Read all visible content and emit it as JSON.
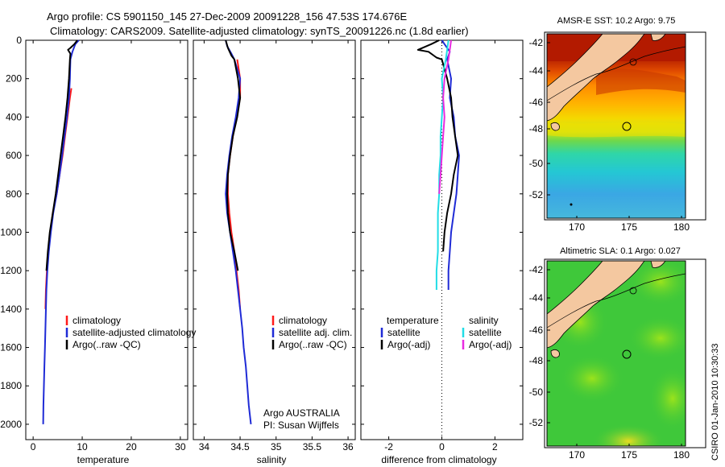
{
  "header": {
    "line1": "Argo profile: CS 5901150_145 27-Dec-2009 20091228_156 47.53S 174.676E",
    "line2": "Climatology: CARS2009. Satellite-adjusted climatology: synTS_20091226.nc (1.8d earlier)"
  },
  "footer": {
    "agency_line1": "Argo AUSTRALIA",
    "agency_line2": "PI: Susan Wijffels",
    "csiro_stamp": "CSIRO 01-Jan-2010 10:30:33"
  },
  "colors": {
    "climatology": "#ff1a1a",
    "satellite": "#1f2bd6",
    "argo": "#000000",
    "satellite_salinity": "#22dde6",
    "argo_adj_salinity": "#e82be0"
  },
  "chart_data": [
    {
      "type": "line",
      "id": "temperature",
      "xlabel": "temperature",
      "xlim": [
        -1.5,
        31.5
      ],
      "ylim": [
        0,
        2080
      ],
      "y_inverted": true,
      "xticks": [
        0,
        10,
        20,
        30
      ],
      "yticks": [
        0,
        200,
        400,
        600,
        800,
        1000,
        1200,
        1400,
        1600,
        1800,
        2000
      ],
      "legend": [
        "climatology",
        "satellite-adjusted climatology",
        "Argo(..raw -QC)"
      ],
      "series": [
        {
          "name": "climatology",
          "color": "#ff1a1a",
          "points": [
            [
              7.8,
              250
            ],
            [
              7.5,
              300
            ],
            [
              7.0,
              400
            ],
            [
              6.5,
              500
            ],
            [
              6.0,
              600
            ],
            [
              5.4,
              700
            ],
            [
              4.8,
              800
            ],
            [
              4.0,
              900
            ],
            [
              3.5,
              1000
            ],
            [
              3.1,
              1100
            ],
            [
              2.8,
              1200
            ],
            [
              2.6,
              1300
            ],
            [
              2.5,
              1400
            ]
          ]
        },
        {
          "name": "satellite-adjusted climatology",
          "color": "#1f2bd6",
          "points": [
            [
              9.3,
              0
            ],
            [
              8.6,
              20
            ],
            [
              8.0,
              60
            ],
            [
              7.6,
              100
            ],
            [
              7.5,
              200
            ],
            [
              7.3,
              300
            ],
            [
              6.9,
              400
            ],
            [
              6.4,
              500
            ],
            [
              5.9,
              600
            ],
            [
              5.4,
              700
            ],
            [
              4.8,
              800
            ],
            [
              4.1,
              900
            ],
            [
              3.6,
              1000
            ],
            [
              3.2,
              1100
            ],
            [
              2.9,
              1200
            ],
            [
              2.7,
              1300
            ],
            [
              2.6,
              1400
            ],
            [
              2.5,
              1500
            ],
            [
              2.4,
              1600
            ],
            [
              2.3,
              1700
            ],
            [
              2.2,
              1800
            ],
            [
              2.1,
              1900
            ],
            [
              2.05,
              2000
            ]
          ]
        },
        {
          "name": "Argo(..raw -QC)",
          "color": "#000000",
          "points": [
            [
              9.0,
              0
            ],
            [
              8.4,
              20
            ],
            [
              7.6,
              40
            ],
            [
              7.1,
              50
            ],
            [
              7.6,
              70
            ],
            [
              7.5,
              100
            ],
            [
              7.3,
              200
            ],
            [
              7.0,
              300
            ],
            [
              6.6,
              400
            ],
            [
              6.1,
              500
            ],
            [
              5.6,
              600
            ],
            [
              5.1,
              700
            ],
            [
              4.6,
              800
            ],
            [
              4.0,
              900
            ],
            [
              3.4,
              1000
            ],
            [
              3.0,
              1100
            ],
            [
              2.7,
              1200
            ]
          ]
        }
      ]
    },
    {
      "type": "line",
      "id": "salinity",
      "xlabel": "salinity",
      "xlim": [
        33.85,
        36.1
      ],
      "ylim": [
        0,
        2080
      ],
      "y_inverted": true,
      "xticks": [
        34,
        34.5,
        35,
        35.5,
        36
      ],
      "legend": [
        "climatology",
        "satellite adj. clim.",
        "Argo(..raw -QC)"
      ],
      "series": [
        {
          "name": "climatology",
          "color": "#ff1a1a",
          "points": [
            [
              34.46,
              100
            ],
            [
              34.5,
              200
            ],
            [
              34.5,
              300
            ],
            [
              34.45,
              400
            ],
            [
              34.4,
              500
            ],
            [
              34.36,
              600
            ],
            [
              34.33,
              700
            ],
            [
              34.33,
              800
            ],
            [
              34.35,
              900
            ],
            [
              34.38,
              1000
            ],
            [
              34.42,
              1100
            ],
            [
              34.45,
              1200
            ],
            [
              34.48,
              1300
            ],
            [
              34.5,
              1400
            ]
          ]
        },
        {
          "name": "satellite adj. clim.",
          "color": "#1f2bd6",
          "points": [
            [
              34.3,
              0
            ],
            [
              34.32,
              30
            ],
            [
              34.38,
              70
            ],
            [
              34.42,
              100
            ],
            [
              34.5,
              200
            ],
            [
              34.48,
              300
            ],
            [
              34.44,
              400
            ],
            [
              34.39,
              500
            ],
            [
              34.35,
              600
            ],
            [
              34.32,
              700
            ],
            [
              34.3,
              800
            ],
            [
              34.32,
              900
            ],
            [
              34.36,
              1000
            ],
            [
              34.4,
              1100
            ],
            [
              34.44,
              1200
            ],
            [
              34.47,
              1300
            ],
            [
              34.5,
              1400
            ],
            [
              34.53,
              1500
            ],
            [
              34.55,
              1600
            ],
            [
              34.58,
              1700
            ],
            [
              34.6,
              1800
            ],
            [
              34.62,
              1900
            ],
            [
              34.65,
              2000
            ]
          ]
        },
        {
          "name": "Argo(..raw -QC)",
          "color": "#000000",
          "points": [
            [
              34.3,
              0
            ],
            [
              34.33,
              40
            ],
            [
              34.38,
              80
            ],
            [
              34.42,
              100
            ],
            [
              34.47,
              200
            ],
            [
              34.5,
              300
            ],
            [
              34.46,
              400
            ],
            [
              34.4,
              500
            ],
            [
              34.36,
              600
            ],
            [
              34.33,
              700
            ],
            [
              34.32,
              800
            ],
            [
              34.33,
              900
            ],
            [
              34.36,
              1000
            ],
            [
              34.42,
              1100
            ],
            [
              34.47,
              1200
            ]
          ]
        }
      ]
    },
    {
      "type": "line",
      "id": "difference",
      "xlabel": "difference from climatology",
      "xlim": [
        -3.05,
        3.05
      ],
      "ylim": [
        0,
        2080
      ],
      "y_inverted": true,
      "xticks": [
        -2,
        0,
        2
      ],
      "reference_line_x": 0,
      "legend_titles": [
        "temperature",
        "salinity"
      ],
      "legend": [
        "satellite",
        "Argo(-adj)",
        "satellite",
        "Argo(-adj)"
      ],
      "series": [
        {
          "name": "temperature satellite",
          "color": "#1f2bd6",
          "points": [
            [
              0.0,
              0
            ],
            [
              0.1,
              20
            ],
            [
              0.3,
              60
            ],
            [
              0.2,
              100
            ],
            [
              0.35,
              200
            ],
            [
              0.3,
              300
            ],
            [
              0.45,
              400
            ],
            [
              0.5,
              500
            ],
            [
              0.65,
              600
            ],
            [
              0.6,
              700
            ],
            [
              0.55,
              800
            ],
            [
              0.45,
              900
            ],
            [
              0.35,
              1000
            ],
            [
              0.3,
              1100
            ],
            [
              0.25,
              1200
            ],
            [
              0.25,
              1300
            ]
          ]
        },
        {
          "name": "temperature Argo(-adj)",
          "color": "#000000",
          "points": [
            [
              -0.1,
              0
            ],
            [
              -0.4,
              20
            ],
            [
              -0.9,
              50
            ],
            [
              -0.5,
              60
            ],
            [
              -0.2,
              90
            ],
            [
              0.0,
              100
            ],
            [
              0.2,
              200
            ],
            [
              0.35,
              300
            ],
            [
              0.4,
              400
            ],
            [
              0.5,
              500
            ],
            [
              0.6,
              600
            ],
            [
              0.45,
              700
            ],
            [
              0.35,
              800
            ],
            [
              0.2,
              900
            ],
            [
              0.1,
              1000
            ],
            [
              0.05,
              1100
            ]
          ]
        },
        {
          "name": "salinity satellite",
          "color": "#22dde6",
          "points": [
            [
              0.25,
              0
            ],
            [
              0.2,
              50
            ],
            [
              0.15,
              100
            ],
            [
              0.0,
              200
            ],
            [
              0.05,
              300
            ],
            [
              0.0,
              400
            ],
            [
              -0.05,
              500
            ],
            [
              -0.05,
              600
            ],
            [
              -0.1,
              700
            ],
            [
              -0.1,
              800
            ],
            [
              -0.15,
              900
            ],
            [
              -0.15,
              1000
            ],
            [
              -0.15,
              1100
            ],
            [
              -0.2,
              1200
            ],
            [
              -0.2,
              1300
            ]
          ]
        },
        {
          "name": "salinity Argo(-adj)",
          "color": "#e82be0",
          "points": [
            [
              0.35,
              0
            ],
            [
              0.3,
              50
            ],
            [
              0.25,
              100
            ],
            [
              0.1,
              200
            ],
            [
              0.05,
              300
            ],
            [
              0.1,
              400
            ],
            [
              0.05,
              500
            ],
            [
              0.0,
              600
            ],
            [
              -0.05,
              700
            ],
            [
              -0.1,
              800
            ]
          ]
        }
      ]
    }
  ],
  "maps": [
    {
      "id": "sst",
      "title": "AMSR-E SST: 10.2  Argo: 9.75",
      "xticks": [
        "170",
        "175",
        "180"
      ],
      "yticks": [
        "-42",
        "-44",
        "-46",
        "-48",
        "-50",
        "-52"
      ]
    },
    {
      "id": "sla",
      "title": "Altimetric SLA: 0.1  Argo: 0.027",
      "xticks": [
        "170",
        "175",
        "180"
      ],
      "yticks": [
        "-42",
        "-44",
        "-46",
        "-48",
        "-50",
        "-52"
      ]
    }
  ]
}
